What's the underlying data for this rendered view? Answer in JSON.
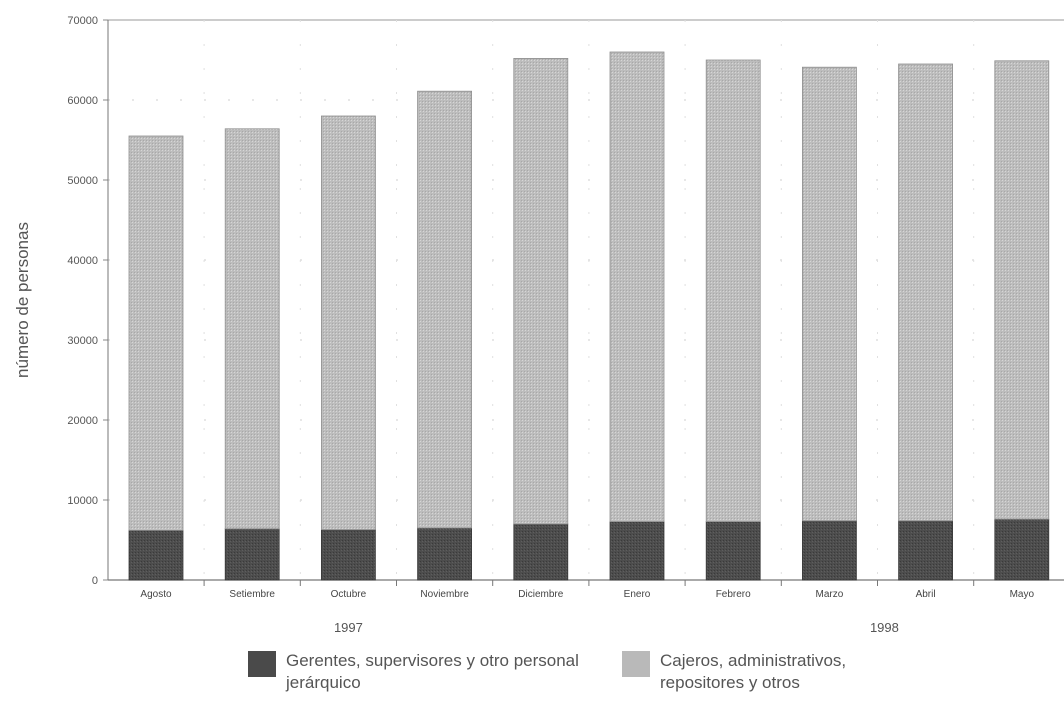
{
  "chart_data": {
    "type": "bar",
    "stacked": true,
    "ylabel": "número de personas",
    "ylim": [
      0,
      70000
    ],
    "yticks": [
      0,
      10000,
      20000,
      30000,
      40000,
      50000,
      60000,
      70000
    ],
    "categories": [
      "Agosto",
      "Setiembre",
      "Octubre",
      "Noviembre",
      "Diciembre",
      "Enero",
      "Febrero",
      "Marzo",
      "Abril",
      "Mayo"
    ],
    "year_groups": [
      {
        "label": "1997",
        "from": 0,
        "to": 4
      },
      {
        "label": "1998",
        "from": 5,
        "to": 9
      }
    ],
    "series": [
      {
        "name": "Gerentes, supervisores y otro personal jerárquico",
        "color": "#4a4a4a",
        "values": [
          6200,
          6400,
          6300,
          6500,
          7000,
          7300,
          7300,
          7400,
          7400,
          7600
        ]
      },
      {
        "name": "Cajeros, administrativos, repositores y otros",
        "color": "#b9b9b9",
        "values": [
          49300,
          50000,
          51700,
          54600,
          58200,
          58700,
          57700,
          56700,
          57100,
          57300
        ]
      }
    ],
    "grid": true,
    "legend": "bottom"
  }
}
